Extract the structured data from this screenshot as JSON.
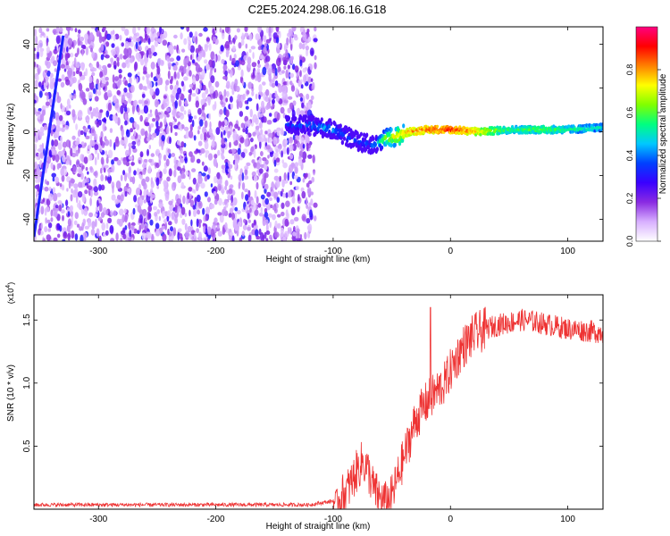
{
  "title": "C2E5.2024.298.06.16.G18",
  "chart_data": [
    {
      "type": "heatmap",
      "xlabel": "Height of straight line (km)",
      "ylabel": "Frequency (Hz)",
      "xlim": [
        -355,
        130
      ],
      "ylim": [
        -50,
        48
      ],
      "x_ticks": [
        -300,
        -200,
        -100,
        0,
        100
      ],
      "y_ticks": [
        -40,
        -20,
        0,
        20,
        40
      ],
      "colorbar": {
        "label": "Normalized spectral amplitude",
        "range": [
          0,
          1
        ],
        "ticks": [
          "0.0",
          "0.2",
          "0.4",
          "0.6",
          "0.8"
        ],
        "tick_values": [
          0,
          0.2,
          0.4,
          0.6,
          0.8
        ],
        "colors": [
          "#ffffff",
          "#d8b0ff",
          "#8a2be2",
          "#3a00ff",
          "#0040ff",
          "#00c8ff",
          "#00ff80",
          "#80ff00",
          "#ffff00",
          "#ff8000",
          "#ff0000",
          "#ff0080"
        ]
      },
      "noise_region_x": [
        -355,
        -115
      ],
      "signal_track": {
        "x": [
          -140,
          -120,
          -100,
          -85,
          -75,
          -65,
          -55,
          -45,
          -35,
          -20,
          0,
          25,
          50,
          75,
          100,
          130
        ],
        "y": [
          3,
          3,
          1,
          -3,
          -5,
          -6,
          -3,
          -2,
          0,
          1,
          1,
          0,
          1,
          1,
          1,
          2
        ],
        "amplitude": [
          0.4,
          0.45,
          0.5,
          0.4,
          0.4,
          0.45,
          0.7,
          0.8,
          0.85,
          0.9,
          0.95,
          0.8,
          0.6,
          0.65,
          0.6,
          0.55
        ]
      }
    },
    {
      "type": "line",
      "xlabel": "Height of straight line (km)",
      "ylabel": "SNR (10 * v/v)",
      "y_multiplier": "(x10",
      "y_multiplier_exp": "4",
      "y_multiplier_close": ")",
      "xlim": [
        -355,
        130
      ],
      "ylim": [
        0,
        1.7
      ],
      "x_ticks": [
        -300,
        -200,
        -100,
        0,
        100
      ],
      "y_ticks": [
        0.5,
        1.0,
        1.5
      ],
      "y_tick_labels": [
        "0.5",
        "1.0",
        "1.5"
      ],
      "color": "#ee3333",
      "series": [
        {
          "x": [
            -355,
            -300,
            -200,
            -120,
            -100,
            -90,
            -85,
            -80,
            -75,
            -70,
            -65,
            -60,
            -55,
            -50,
            -45,
            -40,
            -35,
            -30,
            -25,
            -20,
            -15,
            -10,
            -5,
            0,
            10,
            20,
            30,
            40,
            50,
            60,
            70,
            80,
            90,
            100,
            110,
            120,
            130
          ],
          "values": [
            0.02,
            0.02,
            0.02,
            0.02,
            0.05,
            0.12,
            0.2,
            0.3,
            0.38,
            0.3,
            0.15,
            0.08,
            0.05,
            0.1,
            0.25,
            0.4,
            0.55,
            0.7,
            0.78,
            0.85,
            0.9,
            0.95,
            1.0,
            1.1,
            1.28,
            1.38,
            1.43,
            1.46,
            1.48,
            1.5,
            1.49,
            1.47,
            1.45,
            1.43,
            1.42,
            1.41,
            1.4
          ]
        }
      ]
    }
  ]
}
